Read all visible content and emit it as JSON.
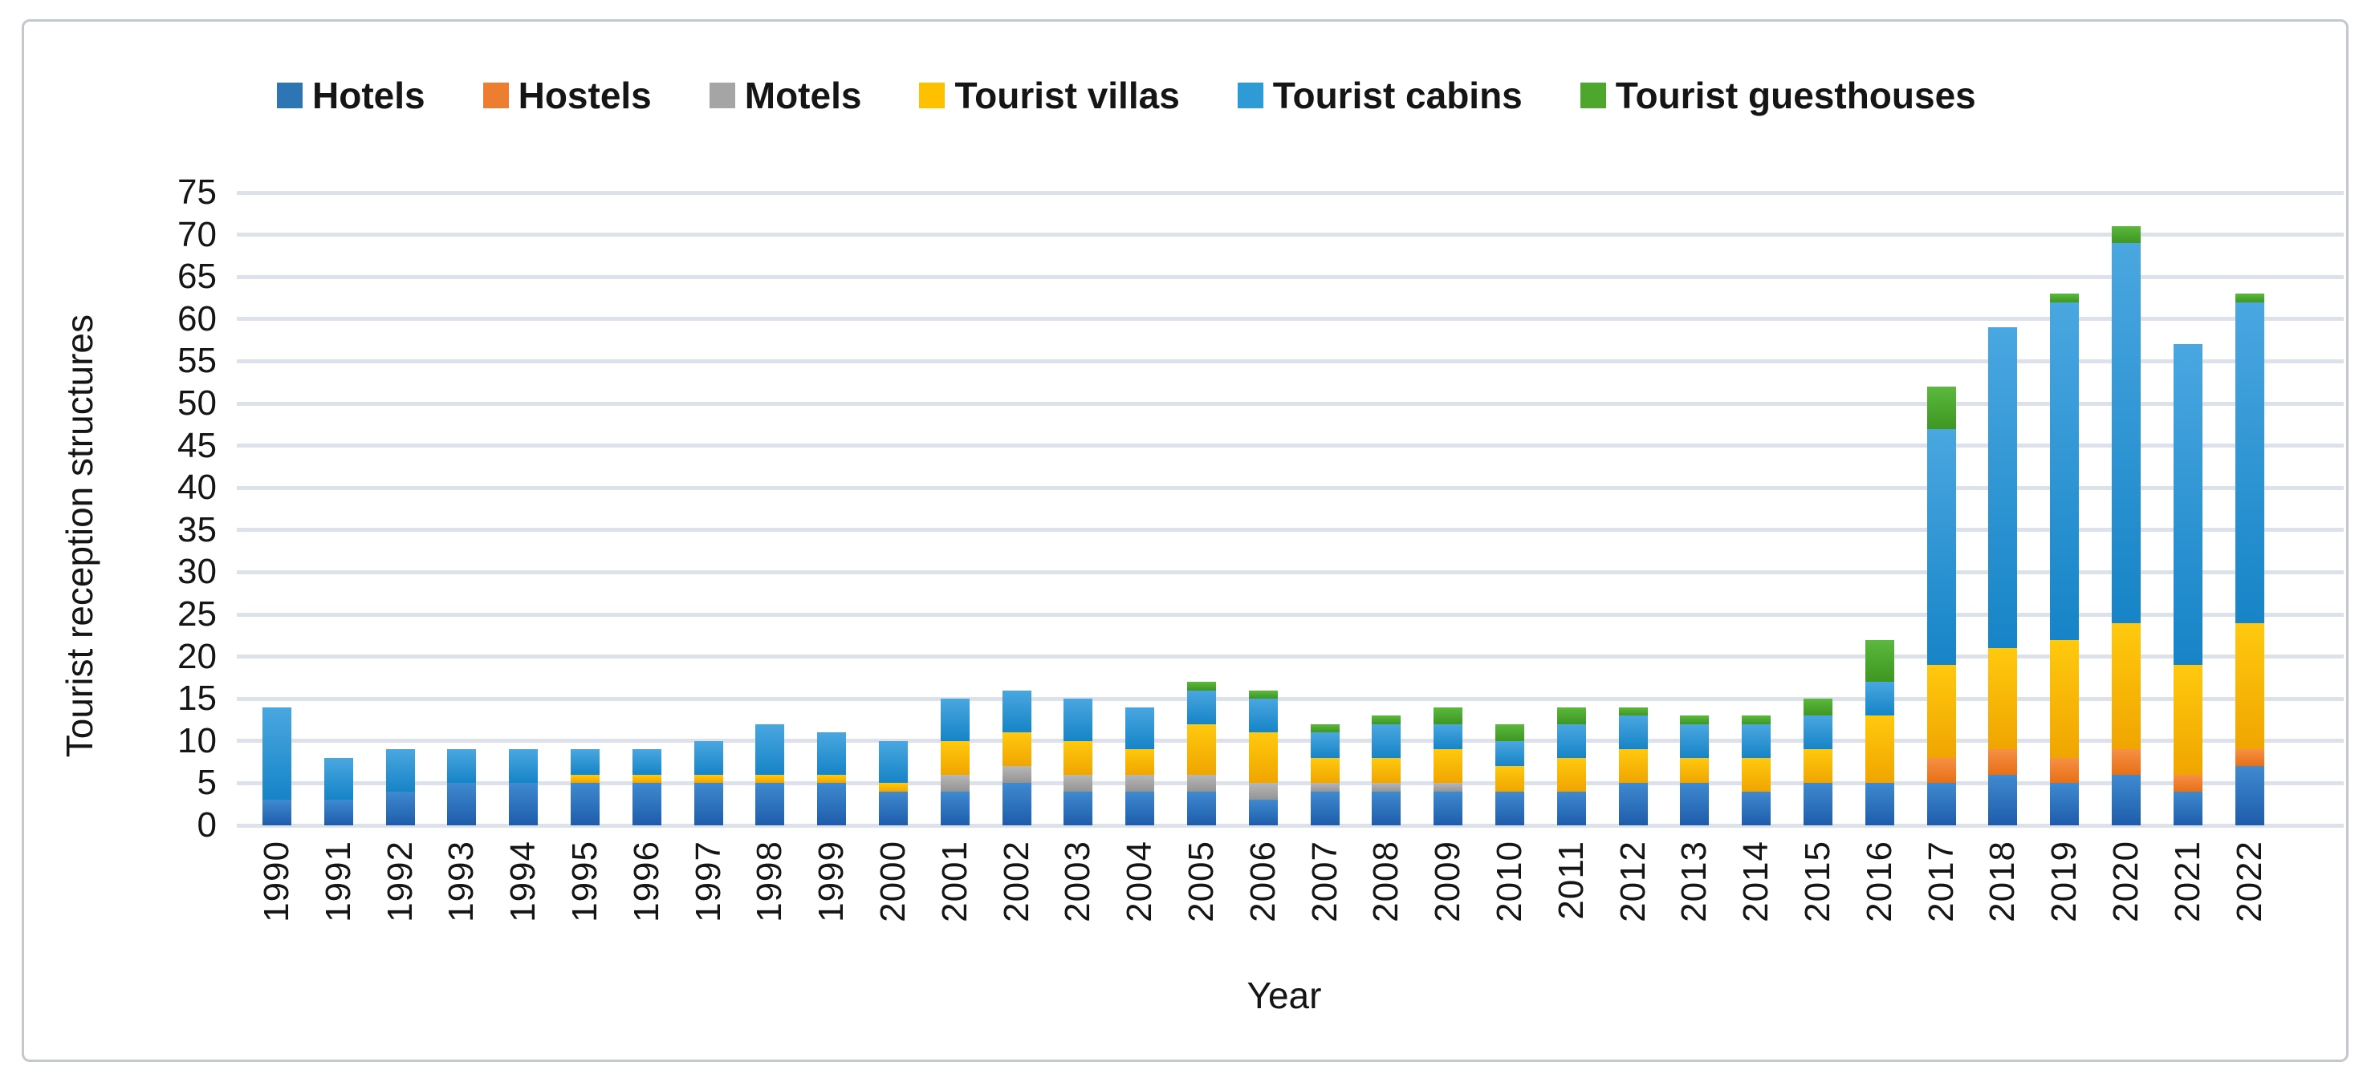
{
  "figure": {
    "background": "#ffffff",
    "border_color": "#c3c8cf",
    "gridline_color": "#dde2ea",
    "text_color": "#151515"
  },
  "chart_data": {
    "type": "bar",
    "stacked": true,
    "title": "",
    "xlabel": "Year",
    "ylabel": "Tourist reception structures",
    "ylim": [
      0,
      75
    ],
    "ytick_step": 5,
    "yticks": [
      0,
      5,
      10,
      15,
      20,
      25,
      30,
      35,
      40,
      45,
      50,
      55,
      60,
      65,
      70,
      75
    ],
    "grid": "horizontal",
    "legend_position": "top",
    "categories": [
      "1990",
      "1991",
      "1992",
      "1993",
      "1994",
      "1995",
      "1996",
      "1997",
      "1998",
      "1999",
      "2000",
      "2001",
      "2002",
      "2003",
      "2004",
      "2005",
      "2006",
      "2007",
      "2008",
      "2009",
      "2010",
      "2011",
      "2012",
      "2013",
      "2014",
      "2015",
      "2016",
      "2017",
      "2018",
      "2019",
      "2020",
      "2021",
      "2022"
    ],
    "series": [
      {
        "name": "Hotels",
        "color": "#2E75B6",
        "gradient": [
          "#3f8ad0",
          "#1e5cab"
        ],
        "values": [
          3,
          3,
          4,
          5,
          5,
          5,
          5,
          5,
          5,
          5,
          4,
          4,
          5,
          4,
          4,
          4,
          3,
          4,
          4,
          4,
          4,
          4,
          5,
          5,
          4,
          5,
          5,
          5,
          6,
          5,
          6,
          4,
          7
        ]
      },
      {
        "name": "Hostels",
        "color": "#ED7D31",
        "gradient": [
          "#f79044",
          "#e76f17"
        ],
        "values": [
          0,
          0,
          0,
          0,
          0,
          0,
          0,
          0,
          0,
          0,
          0,
          0,
          0,
          0,
          0,
          0,
          0,
          0,
          0,
          0,
          0,
          0,
          0,
          0,
          0,
          0,
          0,
          3,
          3,
          3,
          3,
          2,
          2
        ]
      },
      {
        "name": "Motels",
        "color": "#A5A5A5",
        "gradient": [
          "#b7b7b7",
          "#949494"
        ],
        "values": [
          0,
          0,
          0,
          0,
          0,
          0,
          0,
          0,
          0,
          0,
          0,
          2,
          2,
          2,
          2,
          2,
          2,
          1,
          1,
          1,
          0,
          0,
          0,
          0,
          0,
          0,
          0,
          0,
          0,
          0,
          0,
          0,
          0
        ]
      },
      {
        "name": "Tourist villas",
        "color": "#FFC000",
        "gradient": [
          "#ffc90e",
          "#f0a500"
        ],
        "values": [
          0,
          0,
          0,
          0,
          0,
          1,
          1,
          1,
          1,
          1,
          1,
          4,
          4,
          4,
          3,
          6,
          6,
          3,
          3,
          4,
          3,
          4,
          4,
          3,
          4,
          4,
          8,
          11,
          12,
          14,
          15,
          13,
          15
        ]
      },
      {
        "name": "Tourist cabins",
        "color": "#2E9BD6",
        "gradient": [
          "#4aa7e0",
          "#1684c7"
        ],
        "values": [
          11,
          5,
          5,
          4,
          4,
          3,
          3,
          4,
          6,
          5,
          5,
          5,
          5,
          5,
          5,
          4,
          4,
          3,
          4,
          3,
          3,
          4,
          4,
          4,
          4,
          4,
          4,
          28,
          38,
          40,
          45,
          38,
          38
        ]
      },
      {
        "name": "Tourist guesthouses",
        "color": "#4CA72C",
        "gradient": [
          "#5cb83e",
          "#3d9722"
        ],
        "values": [
          0,
          0,
          0,
          0,
          0,
          0,
          0,
          0,
          0,
          0,
          0,
          0,
          0,
          0,
          0,
          1,
          1,
          1,
          1,
          2,
          2,
          2,
          1,
          1,
          1,
          2,
          5,
          5,
          0,
          1,
          2,
          0,
          1
        ]
      }
    ]
  }
}
